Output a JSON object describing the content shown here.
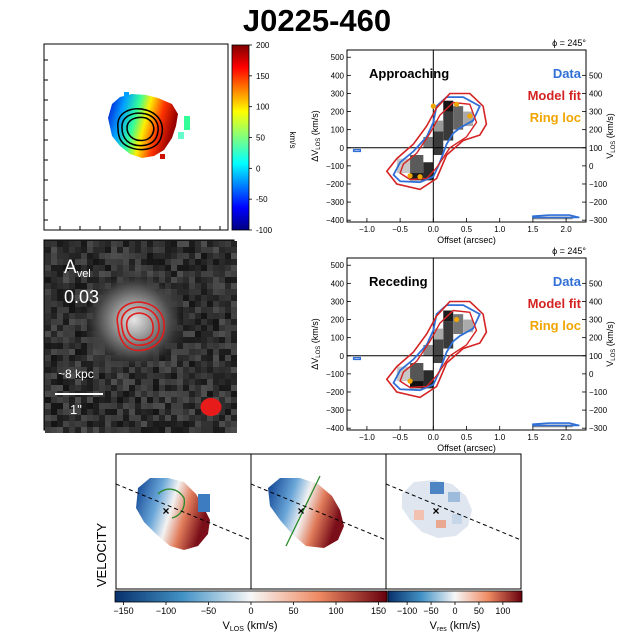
{
  "title": "J0225-460",
  "colors": {
    "data": "#2f6fd6",
    "model": "#d42323",
    "ring": "#f0a500",
    "black": "#000000"
  },
  "velocity_map": {
    "colorbar": {
      "min": -100,
      "max": 200,
      "ticks": [
        200,
        150,
        100,
        50,
        0,
        -50,
        -100
      ],
      "label": "km/s",
      "colormap": "jet"
    }
  },
  "image_panel": {
    "avel_label": "A",
    "avel_sub": "vel",
    "avel_value": "0.03",
    "scale_kpc": "~8 kpc",
    "scale_arcsec": "1\""
  },
  "chart_data": [
    {
      "type": "pv-diagram",
      "id": "approaching",
      "panel_label": "Approaching",
      "phi_label": "ϕ = 245°",
      "legend": [
        "Data",
        "Model fit",
        "Ring loc"
      ],
      "xlabel": "Offset (arcsec)",
      "ylabel_left": "ΔV",
      "ylabel_left_sub": "LOS",
      "ylabel_left_unit": " (km/s)",
      "ylabel_right": "V",
      "ylabel_right_sub": "LOS",
      "ylabel_right_unit": " (km/s)",
      "xlim": [
        -1.3,
        2.3
      ],
      "ylim": [
        -410,
        540
      ],
      "xticks": [
        -1.0,
        -0.5,
        0.0,
        0.5,
        1.0,
        1.5,
        2.0
      ],
      "xtick_labels": [
        "−1.0",
        "−0.5",
        "0.0",
        "0.5",
        "1.0",
        "1.5",
        "2.0"
      ],
      "yticks_left": [
        -400,
        -300,
        -200,
        -100,
        0,
        100,
        200,
        300,
        400,
        500
      ],
      "yticks_left_labels": [
        "−400",
        "−300",
        "−200",
        "−100",
        "0",
        "100",
        "200",
        "300",
        "400",
        "500"
      ],
      "yticks_right": [
        -300,
        -200,
        -100,
        0,
        100,
        200,
        300,
        400,
        500
      ],
      "yticks_right_labels": [
        "−300",
        "−200",
        "−100",
        "0",
        "100",
        "200",
        "300",
        "400",
        "500"
      ],
      "right_offset": 100,
      "ring_points": [
        [
          -0.35,
          -155
        ],
        [
          -0.2,
          -160
        ],
        [
          0.0,
          230
        ],
        [
          0.35,
          240
        ],
        [
          0.55,
          175
        ]
      ]
    },
    {
      "type": "pv-diagram",
      "id": "receding",
      "panel_label": "Receding",
      "phi_label": "ϕ = 245°",
      "legend": [
        "Data",
        "Model fit",
        "Ring loc"
      ],
      "xlabel": "Offset (arcsec)",
      "ylabel_left": "ΔV",
      "ylabel_left_sub": "LOS",
      "ylabel_left_unit": " (km/s)",
      "ylabel_right": "V",
      "ylabel_right_sub": "LOS",
      "ylabel_right_unit": " (km/s)",
      "xlim": [
        -1.3,
        2.3
      ],
      "ylim": [
        -410,
        540
      ],
      "xticks": [
        -1.0,
        -0.5,
        0.0,
        0.5,
        1.0,
        1.5,
        2.0
      ],
      "xtick_labels": [
        "−1.0",
        "−0.5",
        "0.0",
        "0.5",
        "1.0",
        "1.5",
        "2.0"
      ],
      "yticks_left": [
        -400,
        -300,
        -200,
        -100,
        0,
        100,
        200,
        300,
        400,
        500
      ],
      "yticks_left_labels": [
        "−400",
        "−300",
        "−200",
        "−100",
        "0",
        "100",
        "200",
        "300",
        "400",
        "500"
      ],
      "yticks_right": [
        -300,
        -200,
        -100,
        0,
        100,
        200,
        300,
        400,
        500
      ],
      "yticks_right_labels": [
        "−300",
        "−200",
        "−100",
        "0",
        "100",
        "200",
        "300",
        "400",
        "500"
      ],
      "right_offset": 100,
      "ring_points": [
        [
          -0.35,
          -140
        ],
        [
          0.35,
          200
        ]
      ]
    }
  ],
  "bottom_panels": {
    "ylabel": "VELOCITY",
    "cbar1": {
      "min": -160,
      "max": 160,
      "ticks": [
        -150,
        -100,
        -50,
        0,
        50,
        100,
        150
      ],
      "tick_labels": [
        "−150",
        "−100",
        "−50",
        "0",
        "50",
        "100",
        "150"
      ],
      "label": "V",
      "label_sub": "LOS",
      "label_unit": " (km/s)"
    },
    "cbar2": {
      "min": -140,
      "max": 140,
      "ticks": [
        -100,
        -50,
        0,
        50,
        100
      ],
      "tick_labels": [
        "−100",
        "−50",
        "0",
        "50",
        "100"
      ],
      "label": "V",
      "label_sub": "res",
      "label_unit": " (km/s)"
    }
  }
}
